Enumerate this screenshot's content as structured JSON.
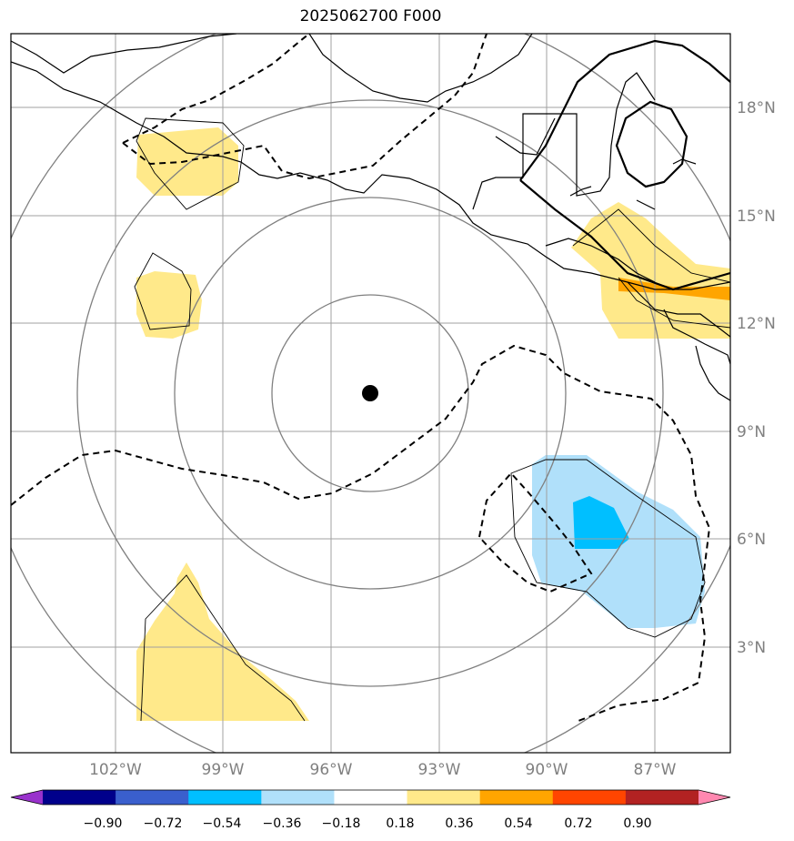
{
  "title": "2025062700 F000",
  "map": {
    "lat_labels": [
      "18°N",
      "15°N",
      "12°N",
      "9°N",
      "6°N",
      "3°N"
    ],
    "lon_labels": [
      "102°W",
      "99°W",
      "96°W",
      "93°W",
      "90°W",
      "87°W"
    ],
    "storm_center": {
      "lat": 10.0,
      "lon": -94.9
    },
    "grid_color": "#a0a0a0",
    "range_ring_color": "#808080"
  },
  "colorbar": {
    "ticks": [
      "−0.90",
      "−0.72",
      "−0.54",
      "−0.36",
      "−0.18",
      "0.18",
      "0.36",
      "0.54",
      "0.72",
      "0.90"
    ],
    "colors": [
      "#9932cc",
      "#00008b",
      "#3a5fcd",
      "#00bfff",
      "#b0e0fa",
      "#ffffff",
      "#ffe98a",
      "#ffa500",
      "#ff4500",
      "#b22222",
      "#ff88b0"
    ]
  }
}
